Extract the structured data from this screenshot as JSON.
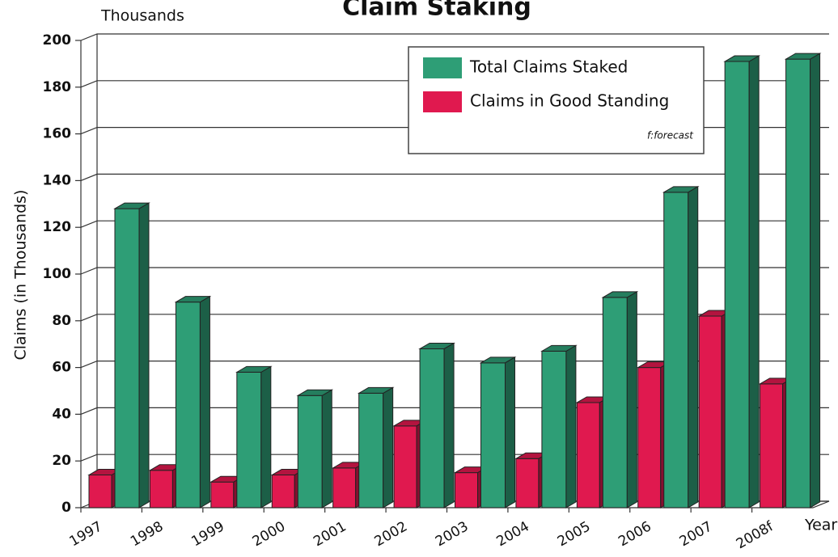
{
  "chart_data": {
    "type": "bar3d",
    "title": "Claim Staking",
    "unit_label": "Thousands",
    "y_label": "Claims (in Thousands)",
    "x_label": "Years",
    "note": "f:forecast",
    "categories": [
      "1997",
      "1998",
      "1999",
      "2000",
      "2001",
      "2002",
      "2003",
      "2004",
      "2005",
      "2006",
      "2007",
      "2008f"
    ],
    "series": [
      {
        "name": "Claims in Good Standing",
        "color": "#e0194f",
        "values": [
          14,
          16,
          11,
          14,
          17,
          35,
          15,
          21,
          45,
          60,
          82,
          53
        ]
      },
      {
        "name": "Total Claims Staked",
        "color": "#2e9e76",
        "values": [
          128,
          88,
          58,
          48,
          49,
          68,
          62,
          67,
          90,
          135,
          191,
          192
        ]
      }
    ],
    "legend_order": [
      1,
      0
    ],
    "legend": "top-right",
    "ylim": [
      0,
      200
    ],
    "yticks": [
      0,
      20,
      40,
      60,
      80,
      100,
      120,
      140,
      160,
      180,
      200
    ],
    "grid": true
  }
}
